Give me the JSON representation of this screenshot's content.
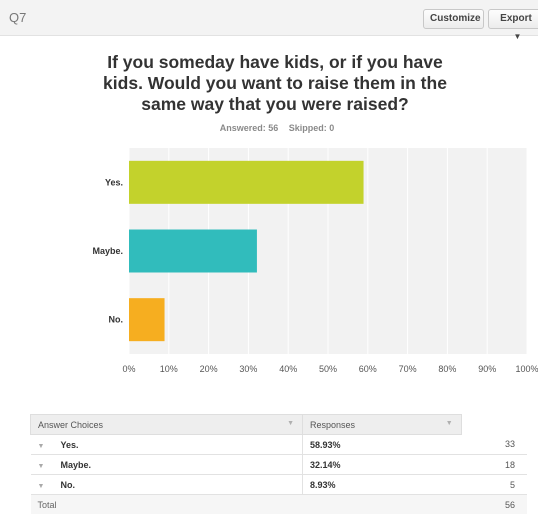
{
  "header": {
    "question_number": "Q7",
    "customize_label": "Customize",
    "export_label": "Export"
  },
  "question": {
    "title": "If you someday have kids, or if you have kids. Would you want to raise them in the same way that you were raised?",
    "answered": "Answered: 56",
    "skipped": "Skipped: 0"
  },
  "chart_data": {
    "type": "bar",
    "orientation": "horizontal",
    "categories": [
      "Yes.",
      "Maybe.",
      "No."
    ],
    "values": [
      58.93,
      32.14,
      8.93
    ],
    "colors": [
      "#c3d22c",
      "#31bcbc",
      "#f6ae20"
    ],
    "xlim": [
      0,
      100
    ],
    "xticks": [
      "0%",
      "10%",
      "20%",
      "30%",
      "40%",
      "50%",
      "60%",
      "70%",
      "80%",
      "90%",
      "100%"
    ],
    "grid": true,
    "title": "",
    "xlabel": "",
    "ylabel": ""
  },
  "table": {
    "headers": [
      "Answer Choices",
      "Responses"
    ],
    "rows": [
      {
        "choice": "Yes.",
        "percent": "58.93%",
        "count": "33"
      },
      {
        "choice": "Maybe.",
        "percent": "32.14%",
        "count": "18"
      },
      {
        "choice": "No.",
        "percent": "8.93%",
        "count": "5"
      }
    ],
    "total_label": "Total",
    "total_count": "56"
  },
  "icons": {
    "sort": "sort-down-icon",
    "expand": "expand-arrow-icon",
    "dropdown": "caret-down-icon"
  }
}
